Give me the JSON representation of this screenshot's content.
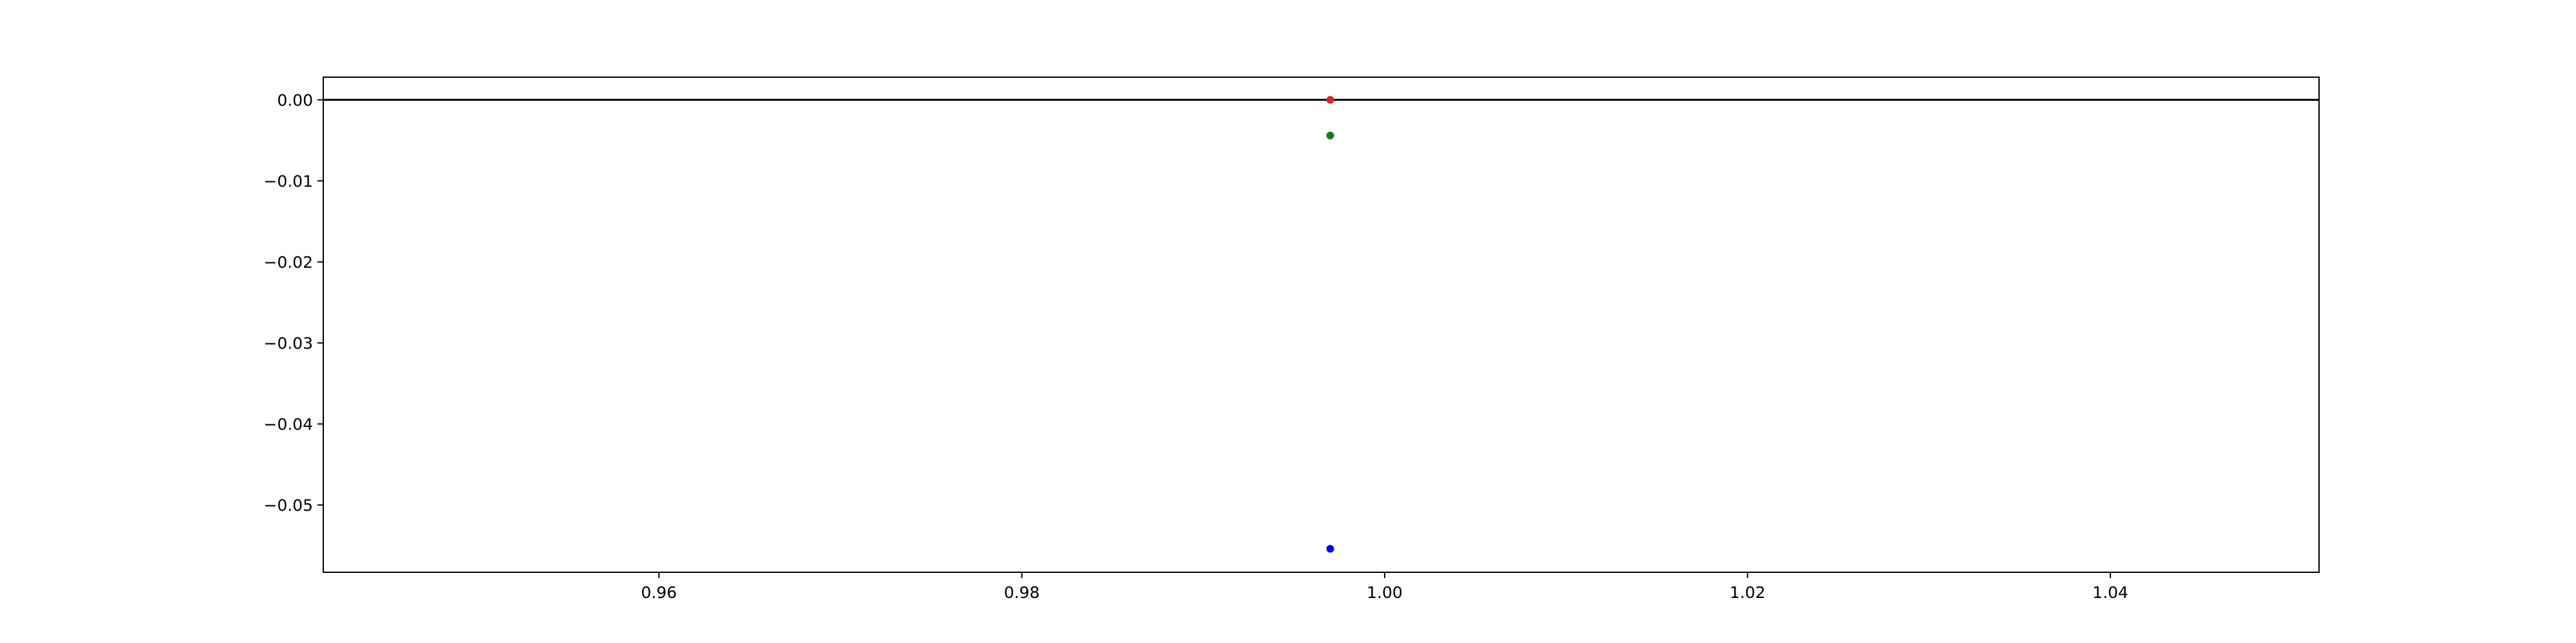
{
  "chart_data": {
    "type": "scatter",
    "title": "",
    "xlabel": "",
    "ylabel": "",
    "xlim": [
      0.9415,
      1.0515
    ],
    "ylim": [
      -0.0583,
      0.0028
    ],
    "grid": false,
    "x_ticks": [
      {
        "value": 0.96,
        "label": "0.96"
      },
      {
        "value": 0.98,
        "label": "0.98"
      },
      {
        "value": 1.0,
        "label": "1.00"
      },
      {
        "value": 1.02,
        "label": "1.02"
      },
      {
        "value": 1.04,
        "label": "1.04"
      }
    ],
    "y_ticks": [
      {
        "value": 0.0,
        "label": "0.00"
      },
      {
        "value": -0.01,
        "label": "−0.01"
      },
      {
        "value": -0.02,
        "label": "−0.02"
      },
      {
        "value": -0.03,
        "label": "−0.03"
      },
      {
        "value": -0.04,
        "label": "−0.04"
      },
      {
        "value": -0.05,
        "label": "−0.05"
      }
    ],
    "reference_line": {
      "y": 0.0,
      "color": "#000000"
    },
    "points": [
      {
        "x": 0.997,
        "y": 0.0,
        "color": "#d62728"
      },
      {
        "x": 0.997,
        "y": -0.0044,
        "color": "#1a7a1a"
      },
      {
        "x": 0.997,
        "y": -0.0554,
        "color": "#0000ff"
      }
    ]
  }
}
